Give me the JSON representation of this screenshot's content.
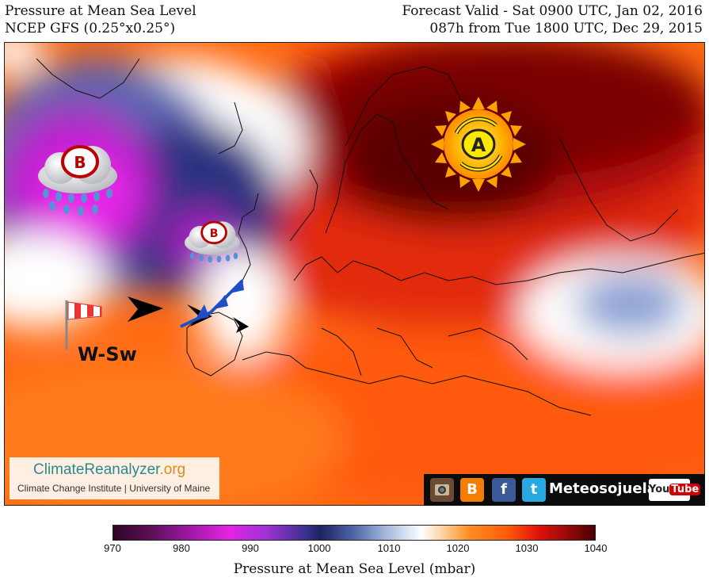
{
  "header": {
    "title_line1": "Pressure at Mean Sea Level",
    "title_line2": "NCEP GFS (0.25°x0.25°)",
    "valid_line1": "Forecast Valid - Sat 0900 UTC, Jan 02, 2016",
    "valid_line2": "087h from Tue 1800 UTC, Dec 29, 2015"
  },
  "map": {
    "high_label": "A",
    "low_labels": [
      "B",
      "B"
    ],
    "wind_label": "W-Sw",
    "colors": {
      "high": "#5a0000",
      "low": "#c81cd8",
      "neutral": "#ffffff",
      "mid": "#ff6a10"
    }
  },
  "branding": {
    "site_main": "ClimateReanalyzer",
    "site_tld": ".org",
    "site_sub": "Climate Change Institute | University of Maine"
  },
  "social": {
    "name": "Meteosojuela",
    "icons": [
      "instagram-icon",
      "blogger-icon",
      "facebook-icon",
      "twitter-icon",
      "youtube-icon"
    ],
    "blogger_glyph": "B",
    "facebook_glyph": "f",
    "twitter_glyph": "t",
    "youtube_text": "You",
    "youtube_tube": "Tube"
  },
  "colorbar": {
    "ticks": [
      "970",
      "980",
      "990",
      "1000",
      "1010",
      "1020",
      "1030",
      "1040"
    ],
    "label": "Pressure at Mean Sea Level (mbar)"
  }
}
